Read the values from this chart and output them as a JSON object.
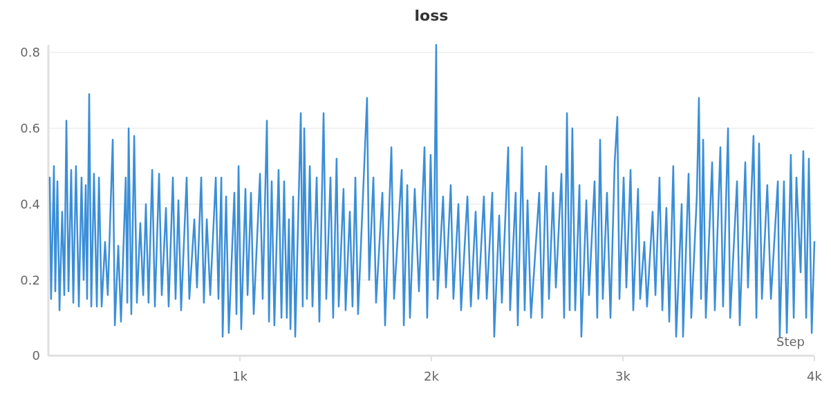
{
  "chart_data": {
    "type": "line",
    "title": "loss",
    "xlabel": "Step",
    "x": [
      7,
      14,
      29,
      36,
      47,
      58,
      72,
      83,
      94,
      105,
      119,
      130,
      144,
      159,
      173,
      184,
      195,
      202,
      213,
      224,
      238,
      253,
      264,
      278,
      296,
      310,
      336,
      347,
      365,
      379,
      404,
      412,
      419,
      433,
      448,
      462,
      480,
      495,
      509,
      523,
      542,
      556,
      578,
      592,
      614,
      628,
      650,
      664,
      679,
      693,
      722,
      736,
      762,
      776,
      798,
      812,
      827,
      845,
      874,
      888,
      903,
      910,
      928,
      942,
      971,
      982,
      993,
      1007,
      1029,
      1040,
      1058,
      1072,
      1105,
      1119,
      1141,
      1152,
      1166,
      1180,
      1202,
      1217,
      1231,
      1245,
      1256,
      1264,
      1278,
      1289,
      1318,
      1328,
      1336,
      1350,
      1365,
      1379,
      1401,
      1415,
      1437,
      1451,
      1473,
      1487,
      1505,
      1516,
      1541,
      1552,
      1574,
      1588,
      1603,
      1617,
      1664,
      1675,
      1697,
      1711,
      1744,
      1758,
      1791,
      1805,
      1845,
      1856,
      1874,
      1888,
      1913,
      1935,
      1964,
      1978,
      1996,
      2011,
      2025,
      2032,
      2061,
      2076,
      2101,
      2115,
      2141,
      2155,
      2188,
      2206,
      2231,
      2245,
      2274,
      2289,
      2318,
      2328,
      2354,
      2368,
      2401,
      2411,
      2440,
      2451,
      2473,
      2487,
      2502,
      2520,
      2563,
      2578,
      2599,
      2614,
      2635,
      2650,
      2679,
      2693,
      2708,
      2722,
      2736,
      2751,
      2773,
      2783,
      2809,
      2823,
      2852,
      2866,
      2881,
      2895,
      2917,
      2935,
      2957,
      2971,
      2982,
      3004,
      3018,
      3040,
      3054,
      3079,
      3090,
      3112,
      3126,
      3155,
      3170,
      3191,
      3206,
      3227,
      3242,
      3263,
      3278,
      3307,
      3314,
      3343,
      3357,
      3386,
      3397,
      3408,
      3419,
      3433,
      3466,
      3480,
      3509,
      3523,
      3549,
      3560,
      3596,
      3610,
      3639,
      3653,
      3682,
      3697,
      3711,
      3726,
      3754,
      3773,
      3809,
      3819,
      3841,
      3856,
      3877,
      3892,
      3906,
      3928,
      3942,
      3957,
      3971,
      3986,
      4000
    ],
    "series": [
      {
        "color": "#3b8ed8",
        "values": [
          0.47,
          0.15,
          0.5,
          0.17,
          0.46,
          0.12,
          0.38,
          0.16,
          0.62,
          0.17,
          0.49,
          0.14,
          0.5,
          0.13,
          0.47,
          0.2,
          0.45,
          0.15,
          0.69,
          0.13,
          0.48,
          0.13,
          0.47,
          0.13,
          0.3,
          0.16,
          0.57,
          0.08,
          0.29,
          0.09,
          0.47,
          0.14,
          0.6,
          0.11,
          0.58,
          0.14,
          0.35,
          0.16,
          0.4,
          0.14,
          0.49,
          0.13,
          0.48,
          0.16,
          0.39,
          0.13,
          0.47,
          0.15,
          0.41,
          0.12,
          0.47,
          0.15,
          0.36,
          0.18,
          0.47,
          0.14,
          0.36,
          0.16,
          0.47,
          0.15,
          0.47,
          0.05,
          0.42,
          0.06,
          0.43,
          0.11,
          0.5,
          0.07,
          0.44,
          0.16,
          0.43,
          0.11,
          0.48,
          0.15,
          0.62,
          0.09,
          0.46,
          0.08,
          0.49,
          0.1,
          0.46,
          0.1,
          0.36,
          0.07,
          0.42,
          0.05,
          0.64,
          0.13,
          0.6,
          0.15,
          0.5,
          0.13,
          0.47,
          0.09,
          0.64,
          0.15,
          0.47,
          0.1,
          0.52,
          0.13,
          0.44,
          0.12,
          0.38,
          0.13,
          0.47,
          0.11,
          0.68,
          0.2,
          0.47,
          0.14,
          0.43,
          0.08,
          0.55,
          0.15,
          0.49,
          0.08,
          0.45,
          0.1,
          0.44,
          0.17,
          0.55,
          0.1,
          0.53,
          0.2,
          0.82,
          0.15,
          0.42,
          0.18,
          0.45,
          0.15,
          0.4,
          0.12,
          0.42,
          0.13,
          0.38,
          0.15,
          0.42,
          0.15,
          0.43,
          0.05,
          0.37,
          0.14,
          0.55,
          0.12,
          0.43,
          0.08,
          0.55,
          0.12,
          0.41,
          0.1,
          0.43,
          0.1,
          0.5,
          0.15,
          0.43,
          0.18,
          0.48,
          0.1,
          0.64,
          0.12,
          0.6,
          0.12,
          0.45,
          0.05,
          0.41,
          0.16,
          0.46,
          0.1,
          0.57,
          0.15,
          0.43,
          0.1,
          0.51,
          0.63,
          0.15,
          0.47,
          0.18,
          0.49,
          0.12,
          0.44,
          0.15,
          0.3,
          0.13,
          0.38,
          0.16,
          0.47,
          0.12,
          0.39,
          0.09,
          0.5,
          0.05,
          0.4,
          0.05,
          0.48,
          0.1,
          0.42,
          0.68,
          0.15,
          0.57,
          0.1,
          0.51,
          0.12,
          0.55,
          0.13,
          0.6,
          0.1,
          0.46,
          0.08,
          0.51,
          0.18,
          0.58,
          0.1,
          0.56,
          0.15,
          0.45,
          0.15,
          0.46,
          0.05,
          0.46,
          0.06,
          0.53,
          0.1,
          0.47,
          0.22,
          0.54,
          0.1,
          0.52,
          0.06,
          0.3
        ]
      }
    ],
    "xlim": [
      0,
      4000
    ],
    "xticks": [
      {
        "value": 1000,
        "label": "1k"
      },
      {
        "value": 2000,
        "label": "2k"
      },
      {
        "value": 3000,
        "label": "3k"
      },
      {
        "value": 4000,
        "label": "4k"
      }
    ],
    "ylim": [
      0,
      0.82
    ],
    "yticks": [
      0,
      0.2,
      0.4,
      0.6,
      0.8
    ],
    "grid": "y",
    "marker": "none",
    "line_style": "solid"
  }
}
